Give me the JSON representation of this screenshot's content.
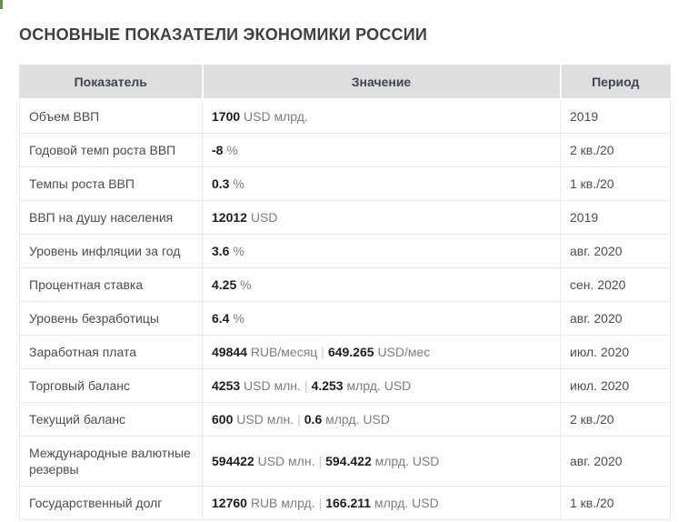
{
  "page": {
    "title": "ОСНОВНЫЕ ПОКАЗАТЕЛИ ЭКОНОМИКИ РОССИИ"
  },
  "colors": {
    "header_background": "#dcdedf",
    "header_text": "#3f454b",
    "title_text": "#3b4046",
    "value_bold": "#1d1d1d",
    "unit_text": "#7d7d7d",
    "border": "#e7e8e9",
    "artifact_mark": "#6f8f44"
  },
  "table": {
    "headers": [
      "Показатель",
      "Значение",
      "Период"
    ],
    "rows": [
      {
        "indicator": "Объем ВВП",
        "v1": "1700",
        "u1": "USD млрд.",
        "period": "2019"
      },
      {
        "indicator": "Годовой темп роста ВВП",
        "v1": "-8",
        "u1": "%",
        "period": "2 кв./20"
      },
      {
        "indicator": "Темпы роста ВВП",
        "v1": "0.3",
        "u1": "%",
        "period": "1 кв./20"
      },
      {
        "indicator": "ВВП на душу населения",
        "v1": "12012",
        "u1": "USD",
        "period": "2019"
      },
      {
        "indicator": "Уровень инфляции за год",
        "v1": "3.6",
        "u1": "%",
        "period": "авг. 2020"
      },
      {
        "indicator": "Процентная ставка",
        "v1": "4.25",
        "u1": "%",
        "period": "сен. 2020"
      },
      {
        "indicator": "Уровень безработицы",
        "v1": "6.4",
        "u1": "%",
        "period": "авг. 2020"
      },
      {
        "indicator": "Заработная плата",
        "v1": "49844",
        "u1": "RUB/месяц",
        "sep": "|",
        "v2": "649.265",
        "u2": "USD/мес",
        "period": "июл. 2020"
      },
      {
        "indicator": "Торговый баланс",
        "v1": "4253",
        "u1": "USD млн.",
        "sep": "|",
        "v2": "4.253",
        "u2": "млрд. USD",
        "period": "июл. 2020"
      },
      {
        "indicator": "Текущий баланс",
        "v1": "600",
        "u1": "USD млн.",
        "sep": "|",
        "v2": "0.6",
        "u2": "млрд. USD",
        "period": "2 кв./20"
      },
      {
        "indicator": "Международные валютные резервы",
        "v1": "594422",
        "u1": "USD млн.",
        "sep": "|",
        "v2": "594.422",
        "u2": "млрд. USD",
        "period": "авг. 2020"
      },
      {
        "indicator": "Государственный долг",
        "v1": "12760",
        "u1": "RUB млрд.",
        "sep": "|",
        "v2": "166.211",
        "u2": "млрд. USD",
        "period": "1 кв./20"
      }
    ]
  }
}
